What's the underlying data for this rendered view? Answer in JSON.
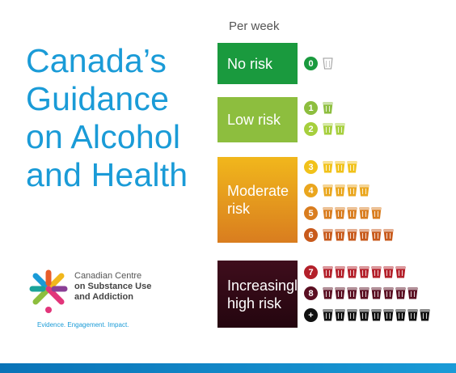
{
  "title": {
    "line1": "Canada’s",
    "line2": "Guidance",
    "line3": "on Alcohol",
    "line4": "and Health"
  },
  "header": {
    "per_week": "Per week"
  },
  "categories": [
    {
      "label_line1": "No risk",
      "label_line2": "",
      "color": "#1a9a3e"
    },
    {
      "label_line1": "Low risk",
      "label_line2": "",
      "color": "#8dbe3e"
    },
    {
      "label_line1": "Moderate",
      "label_line2": "risk",
      "color_top": "#f1b71c",
      "color_bottom": "#d97d1f"
    },
    {
      "label_line1": "Increasingly",
      "label_line2": "high risk",
      "color_top": "#3f0d1c",
      "color_bottom": "#24060f"
    }
  ],
  "drinks": [
    {
      "badge": "0",
      "count": 0,
      "badge_color": "#1a9a3e",
      "glass_color": "#ffffff"
    },
    {
      "badge": "1",
      "count": 1,
      "badge_color": "#8dbe3e",
      "glass_color": "#8dbe3e"
    },
    {
      "badge": "2",
      "count": 2,
      "badge_color": "#a6cf3d",
      "glass_color": "#a6cf3d"
    },
    {
      "badge": "3",
      "count": 3,
      "badge_color": "#f1c21a",
      "glass_color": "#f1c21a"
    },
    {
      "badge": "4",
      "count": 4,
      "badge_color": "#eaa61e",
      "glass_color": "#eaa61e"
    },
    {
      "badge": "5",
      "count": 5,
      "badge_color": "#d97d1f",
      "glass_color": "#d97d1f"
    },
    {
      "badge": "6",
      "count": 6,
      "badge_color": "#c85a1c",
      "glass_color": "#c85a1c"
    },
    {
      "badge": "7",
      "count": 7,
      "badge_color": "#b3202a",
      "glass_color": "#b3202a"
    },
    {
      "badge": "8",
      "count": 8,
      "badge_color": "#5a0f22",
      "glass_color": "#5a0f22"
    },
    {
      "badge": "+",
      "count": 9,
      "badge_color": "#111111",
      "glass_color": "#111111"
    }
  ],
  "org": {
    "line1": "Canadian Centre",
    "line2": "on Substance Use",
    "line3": "and Addiction",
    "tagline": "Evidence. Engagement. Impact."
  }
}
